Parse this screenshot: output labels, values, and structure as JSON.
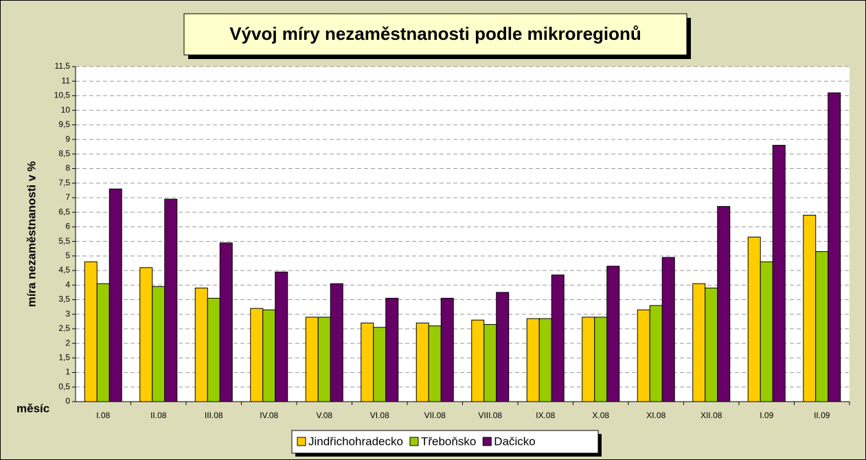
{
  "chart_data": {
    "type": "bar",
    "title": "Vývoj míry nezaměstnanosti podle mikroregionů",
    "y_label": "míra nezaměstnanosti v %",
    "x_label": "měsíc",
    "categories": [
      "I.08",
      "II.08",
      "III.08",
      "IV.08",
      "V.08",
      "VI.08",
      "VII.08",
      "VIII.08",
      "IX.08",
      "X.08",
      "XI.08",
      "XII.08",
      "I.09",
      "II.09"
    ],
    "series": [
      {
        "name": "Jindřichohradecko",
        "color": "#ffcc00",
        "values": [
          4.8,
          4.6,
          3.9,
          3.2,
          2.9,
          2.7,
          2.7,
          2.8,
          2.85,
          2.9,
          3.15,
          4.05,
          5.65,
          6.4
        ]
      },
      {
        "name": "Třeboňsko",
        "color": "#99cc00",
        "values": [
          4.05,
          3.95,
          3.55,
          3.15,
          2.9,
          2.55,
          2.6,
          2.65,
          2.85,
          2.9,
          3.3,
          3.9,
          4.8,
          5.15
        ]
      },
      {
        "name": "Dačicko",
        "color": "#660066",
        "values": [
          7.3,
          6.95,
          5.45,
          4.45,
          4.05,
          3.55,
          3.55,
          3.75,
          4.35,
          4.65,
          4.95,
          6.7,
          8.8,
          10.6
        ]
      }
    ],
    "ylim": [
      0,
      11.5
    ],
    "yticks": [
      0,
      {
        "value": 0.5,
        "label": "0,5"
      },
      1,
      {
        "value": 1.5,
        "label": "1,5"
      },
      2,
      {
        "value": 2.5,
        "label": "2,5"
      },
      3,
      {
        "value": 3.5,
        "label": "3,5"
      },
      4,
      {
        "value": 4.5,
        "label": "4,5"
      },
      5,
      {
        "value": 5.5,
        "label": "5,5"
      },
      6,
      {
        "value": 6.5,
        "label": "6,5"
      },
      7,
      {
        "value": 7.5,
        "label": "7,5"
      },
      8,
      {
        "value": 8.5,
        "label": "8,5"
      },
      9,
      {
        "value": 9.5,
        "label": "9,5"
      },
      10,
      {
        "value": 10.5,
        "label": "10,5"
      },
      11,
      {
        "value": 11.5,
        "label": "11,5"
      }
    ],
    "grid": true,
    "legend": "bottom"
  }
}
